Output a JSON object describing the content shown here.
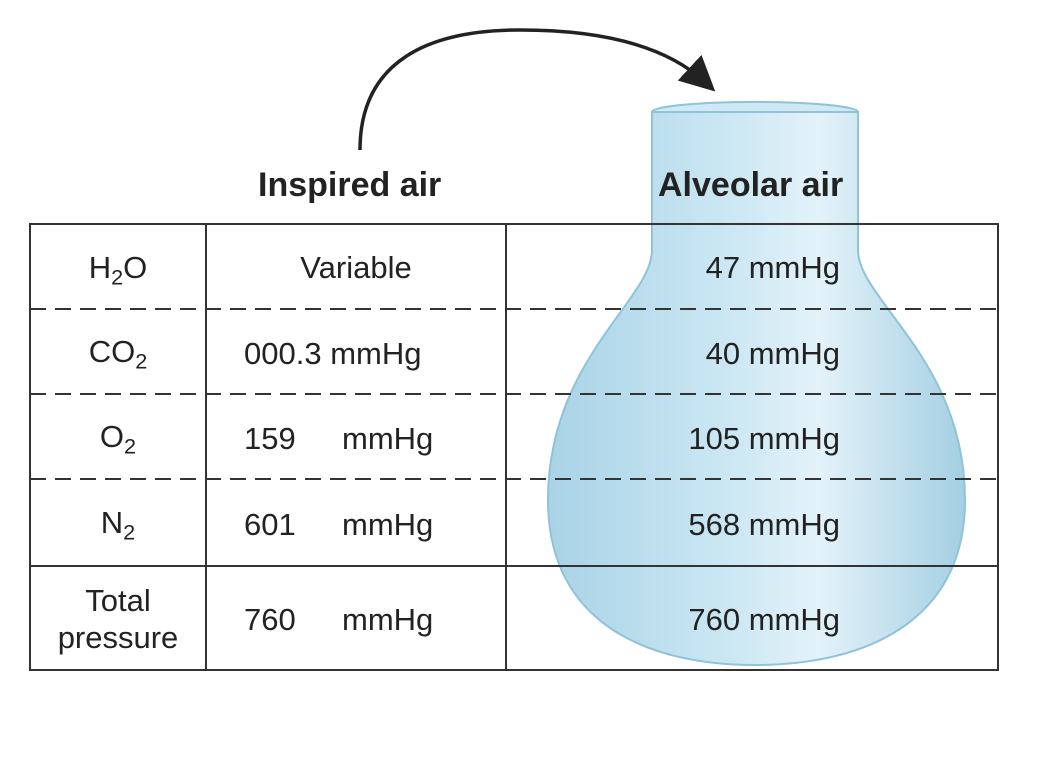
{
  "headings": {
    "inspired": "Inspired air",
    "alveolar": "Alveolar air"
  },
  "rows": [
    {
      "gas": "H",
      "sub": "2",
      "gas_suffix": "O",
      "inspired": "Variable",
      "alveolar": "47 mmHg"
    },
    {
      "gas": "CO",
      "sub": "2",
      "gas_suffix": "",
      "inspired": "000.3 mmHg",
      "alveolar": "40 mmHg"
    },
    {
      "gas": "O",
      "sub": "2",
      "gas_suffix": "",
      "inspired_num": "159",
      "inspired_unit": "mmHg",
      "alveolar": "105 mmHg"
    },
    {
      "gas": "N",
      "sub": "2",
      "gas_suffix": "",
      "inspired_num": "601",
      "inspired_unit": "mmHg",
      "alveolar": "568 mmHg"
    }
  ],
  "total": {
    "label_line1": "Total",
    "label_line2": "pressure",
    "inspired_num": "760",
    "inspired_unit": "mmHg",
    "alveolar": "760 mmHg"
  },
  "colors": {
    "flask_fill": "#bfe0ef",
    "flask_edge": "#8ec3da",
    "lines": "#333333"
  },
  "icons": {
    "arrow": "curved-arrow-icon",
    "flask": "alveolus-flask-icon"
  }
}
